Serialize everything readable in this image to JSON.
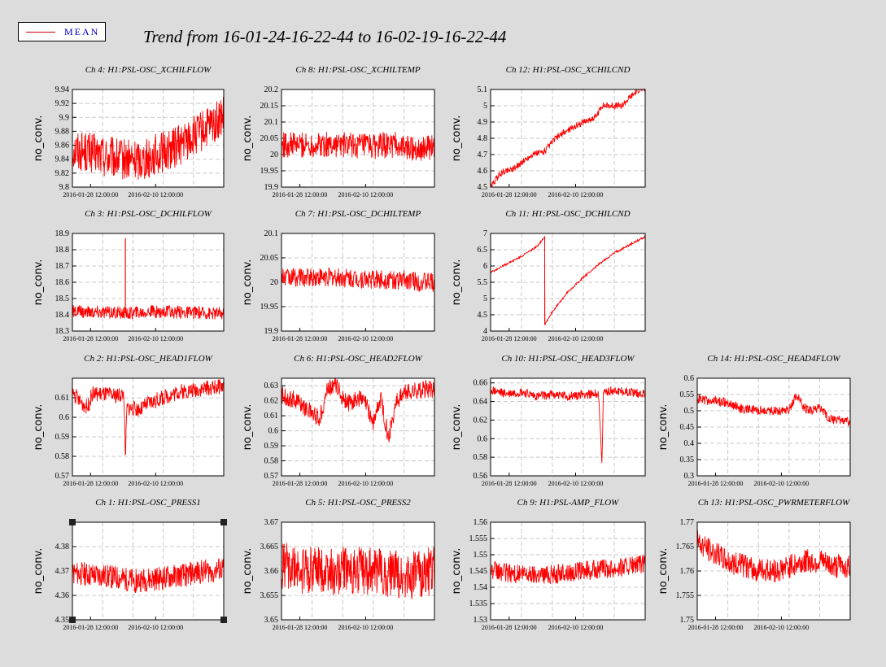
{
  "legend": {
    "label": "MEAN",
    "color": "#d00000"
  },
  "title": "Trend from 16-01-24-16-22-44 to 16-02-19-16-22-44",
  "series_color": "#ff0000",
  "ylabel": "no_conv.",
  "xtick_labels": [
    "2016-01-28 12:00:00",
    "2016-02-10 12:00:00"
  ],
  "chart_data": [
    {
      "type": "line",
      "title": "Ch 4: H1:PSL-OSC_XCHILFLOW",
      "ylabel": "no_conv.",
      "ylim": [
        9.8,
        9.94
      ],
      "yticks": [
        "9.8",
        "9.82",
        "9.84",
        "9.86",
        "9.88",
        "9.9",
        "9.92",
        "9.94"
      ],
      "xticks": [
        "2016-01-28 12:00:00",
        "2016-02-10 12:00:00"
      ],
      "series": [
        {
          "x": [
            0,
            0.1,
            0.2,
            0.3,
            0.4,
            0.5,
            0.6,
            0.7,
            0.8,
            0.9,
            1
          ],
          "values": [
            9.855,
            9.85,
            9.845,
            9.84,
            9.838,
            9.842,
            9.85,
            9.86,
            9.872,
            9.885,
            9.9
          ],
          "spread": 0.03
        }
      ]
    },
    {
      "type": "line",
      "title": "Ch 8: H1:PSL-OSC_XCHILTEMP",
      "ylabel": "no_conv.",
      "ylim": [
        19.9,
        20.2
      ],
      "yticks": [
        "19.9",
        "19.95",
        "20",
        "20.05",
        "20.1",
        "20.15",
        "20.2"
      ],
      "xticks": [
        "2016-01-28 12:00:00",
        "2016-02-10 12:00:00"
      ],
      "series": [
        {
          "x": [
            0,
            0.2,
            0.4,
            0.6,
            0.75,
            0.8,
            1
          ],
          "values": [
            20.03,
            20.03,
            20.03,
            20.025,
            20.03,
            20.02,
            20.02
          ],
          "spread": 0.04
        }
      ]
    },
    {
      "type": "line",
      "title": "Ch 12: H1:PSL-OSC_XCHILCND",
      "ylabel": "no_conv.",
      "ylim": [
        4.5,
        5.1
      ],
      "yticks": [
        "4.5",
        "4.6",
        "4.7",
        "4.8",
        "4.9",
        "5",
        "5.1"
      ],
      "xticks": [
        "2016-01-28 12:00:00",
        "2016-02-10 12:00:00"
      ],
      "series": [
        {
          "x": [
            0,
            0.06,
            0.1,
            0.16,
            0.2,
            0.27,
            0.35,
            0.42,
            0.5,
            0.6,
            0.68,
            0.72,
            0.85,
            0.9,
            0.96
          ],
          "values": [
            4.5,
            4.58,
            4.6,
            4.62,
            4.65,
            4.7,
            4.72,
            4.8,
            4.85,
            4.9,
            4.93,
            5.0,
            5.0,
            5.05,
            5.1
          ],
          "spread": 0.02
        }
      ]
    },
    {
      "type": "line",
      "title": "Ch 3: H1:PSL-OSC_DCHILFLOW",
      "ylabel": "no_conv.",
      "ylim": [
        18.3,
        18.9
      ],
      "yticks": [
        "18.3",
        "18.4",
        "18.5",
        "18.6",
        "18.7",
        "18.8",
        "18.9"
      ],
      "xticks": [
        "2016-01-28 12:00:00",
        "2016-02-10 12:00:00"
      ],
      "series": [
        {
          "x": [
            0,
            0.35,
            0.35,
            0.35,
            0.5,
            1
          ],
          "values": [
            18.42,
            18.41,
            18.87,
            18.41,
            18.42,
            18.41
          ],
          "spread": 0.04
        }
      ]
    },
    {
      "type": "line",
      "title": "Ch 7: H1:PSL-OSC_DCHILTEMP",
      "ylabel": "no_conv.",
      "ylim": [
        19.9,
        20.1
      ],
      "yticks": [
        "19.9",
        "19.95",
        "20",
        "20.05",
        "20.1"
      ],
      "xticks": [
        "2016-01-28 12:00:00",
        "2016-02-10 12:00:00"
      ],
      "series": [
        {
          "x": [
            0,
            0.3,
            0.6,
            0.85,
            0.9,
            1
          ],
          "values": [
            20.01,
            20.01,
            20.005,
            20.005,
            20,
            20
          ],
          "spread": 0.02
        }
      ]
    },
    {
      "type": "line",
      "title": "Ch 11: H1:PSL-OSC_DCHILCND",
      "ylabel": "no_conv.",
      "ylim": [
        4,
        7
      ],
      "yticks": [
        "4",
        "4.5",
        "5",
        "5.5",
        "6",
        "6.5",
        "7"
      ],
      "xticks": [
        "2016-01-28 12:00:00",
        "2016-02-10 12:00:00"
      ],
      "series": [
        {
          "x": [
            0,
            0.1,
            0.2,
            0.3,
            0.35,
            0.35,
            0.4,
            0.5,
            0.6,
            0.7,
            0.8,
            0.9,
            1
          ],
          "values": [
            5.8,
            6.05,
            6.3,
            6.6,
            6.9,
            4.2,
            4.6,
            5.2,
            5.65,
            6.05,
            6.4,
            6.65,
            6.9
          ],
          "spread": 0.03
        }
      ]
    },
    {
      "type": "line",
      "title": "Ch 2: H1:PSL-OSC_HEAD1FLOW",
      "ylabel": "no_conv.",
      "ylim": [
        0.57,
        0.62
      ],
      "yticks": [
        "0.57",
        "0.58",
        "0.59",
        "0.6",
        "0.61"
      ],
      "xticks": [
        "2016-01-28 12:00:00",
        "2016-02-10 12:00:00"
      ],
      "series": [
        {
          "x": [
            0,
            0.05,
            0.1,
            0.13,
            0.2,
            0.28,
            0.34,
            0.35,
            0.36,
            0.45,
            0.5,
            0.6,
            0.7,
            0.8,
            0.9,
            1
          ],
          "values": [
            0.613,
            0.608,
            0.605,
            0.612,
            0.612,
            0.611,
            0.612,
            0.578,
            0.605,
            0.604,
            0.607,
            0.61,
            0.613,
            0.614,
            0.615,
            0.616
          ],
          "spread": 0.004
        }
      ]
    },
    {
      "type": "line",
      "title": "Ch 6: H1:PSL-OSC_HEAD2FLOW",
      "ylabel": "no_conv.",
      "ylim": [
        0.57,
        0.635
      ],
      "yticks": [
        "0.57",
        "0.58",
        "0.59",
        "0.6",
        "0.61",
        "0.62",
        "0.63"
      ],
      "xticks": [
        "2016-01-28 12:00:00",
        "2016-02-10 12:00:00"
      ],
      "series": [
        {
          "x": [
            0,
            0.1,
            0.2,
            0.25,
            0.3,
            0.35,
            0.4,
            0.45,
            0.5,
            0.55,
            0.6,
            0.65,
            0.7,
            0.75,
            0.8,
            0.9,
            1
          ],
          "values": [
            0.624,
            0.62,
            0.612,
            0.608,
            0.628,
            0.632,
            0.622,
            0.618,
            0.622,
            0.618,
            0.605,
            0.622,
            0.595,
            0.62,
            0.625,
            0.627,
            0.628
          ],
          "spread": 0.006
        }
      ]
    },
    {
      "type": "line",
      "title": "Ch 10: H1:PSL-OSC_HEAD3FLOW",
      "ylabel": "no_conv.",
      "ylim": [
        0.56,
        0.665
      ],
      "yticks": [
        "0.56",
        "0.58",
        "0.6",
        "0.62",
        "0.64",
        "0.66"
      ],
      "xticks": [
        "2016-01-28 12:00:00",
        "2016-02-10 12:00:00"
      ],
      "series": [
        {
          "x": [
            0,
            0.1,
            0.2,
            0.3,
            0.4,
            0.5,
            0.6,
            0.7,
            0.72,
            0.73,
            0.8,
            0.9,
            1
          ],
          "values": [
            0.652,
            0.648,
            0.65,
            0.645,
            0.648,
            0.645,
            0.648,
            0.648,
            0.568,
            0.65,
            0.652,
            0.65,
            0.648
          ],
          "spread": 0.005
        }
      ]
    },
    {
      "type": "line",
      "title": "Ch 14: H1:PSL-OSC_HEAD4FLOW",
      "ylabel": "no_conv.",
      "ylim": [
        0.3,
        0.6
      ],
      "yticks": [
        "0.3",
        "0.35",
        "0.4",
        "0.45",
        "0.5",
        "0.55",
        "0.6"
      ],
      "xticks": [
        "2016-01-28 12:00:00",
        "2016-02-10 12:00:00"
      ],
      "series": [
        {
          "x": [
            0,
            0.1,
            0.2,
            0.3,
            0.4,
            0.5,
            0.6,
            0.65,
            0.7,
            0.75,
            0.8,
            0.85,
            0.9,
            0.95,
            1
          ],
          "values": [
            0.535,
            0.53,
            0.525,
            0.505,
            0.5,
            0.5,
            0.505,
            0.55,
            0.51,
            0.5,
            0.51,
            0.48,
            0.47,
            0.475,
            0.46
          ],
          "spread": 0.015
        }
      ]
    },
    {
      "type": "line",
      "title": "Ch 1: H1:PSL-OSC_PRESS1",
      "ylabel": "no_conv.",
      "ylim": [
        4.35,
        4.39
      ],
      "yticks": [
        "4.35",
        "4.36",
        "4.37",
        "4.38"
      ],
      "xticks": [
        "2016-01-28 12:00:00",
        "2016-02-10 12:00:00"
      ],
      "series": [
        {
          "x": [
            0,
            0.2,
            0.4,
            0.6,
            0.8,
            1
          ],
          "values": [
            4.369,
            4.368,
            4.366,
            4.367,
            4.369,
            4.371
          ],
          "spread": 0.005
        }
      ]
    },
    {
      "type": "line",
      "title": "Ch 5: H1:PSL-OSC_PRESS2",
      "ylabel": "no_conv.",
      "ylim": [
        3.65,
        3.67
      ],
      "yticks": [
        "3.65",
        "3.655",
        "3.66",
        "3.665",
        "3.67"
      ],
      "xticks": [
        "2016-01-28 12:00:00",
        "2016-02-10 12:00:00"
      ],
      "series": [
        {
          "x": [
            0,
            0.2,
            0.4,
            0.6,
            0.8,
            1
          ],
          "values": [
            3.661,
            3.66,
            3.66,
            3.66,
            3.659,
            3.66
          ],
          "spread": 0.005
        }
      ]
    },
    {
      "type": "line",
      "title": "Ch 9: H1:PSL-AMP_FLOW",
      "ylabel": "no_conv.",
      "ylim": [
        1.53,
        1.56
      ],
      "yticks": [
        "1.53",
        "1.535",
        "1.54",
        "1.545",
        "1.55",
        "1.555",
        "1.56"
      ],
      "xticks": [
        "2016-01-28 12:00:00",
        "2016-02-10 12:00:00"
      ],
      "series": [
        {
          "x": [
            0,
            0.2,
            0.4,
            0.6,
            0.8,
            1
          ],
          "values": [
            1.545,
            1.544,
            1.544,
            1.545,
            1.546,
            1.547
          ],
          "spread": 0.003
        }
      ]
    },
    {
      "type": "line",
      "title": "Ch 13: H1:PSL-OSC_PWRMETERFLOW",
      "ylabel": "no_conv.",
      "ylim": [
        1.75,
        1.77
      ],
      "yticks": [
        "1.75",
        "1.755",
        "1.76",
        "1.765",
        "1.77"
      ],
      "xticks": [
        "2016-01-28 12:00:00",
        "2016-02-10 12:00:00"
      ],
      "series": [
        {
          "x": [
            0,
            0.1,
            0.2,
            0.3,
            0.4,
            0.5,
            0.6,
            0.7,
            0.8,
            0.9,
            1
          ],
          "values": [
            1.766,
            1.764,
            1.762,
            1.761,
            1.76,
            1.76,
            1.761,
            1.762,
            1.762,
            1.761,
            1.761
          ],
          "spread": 0.0025
        }
      ]
    }
  ]
}
